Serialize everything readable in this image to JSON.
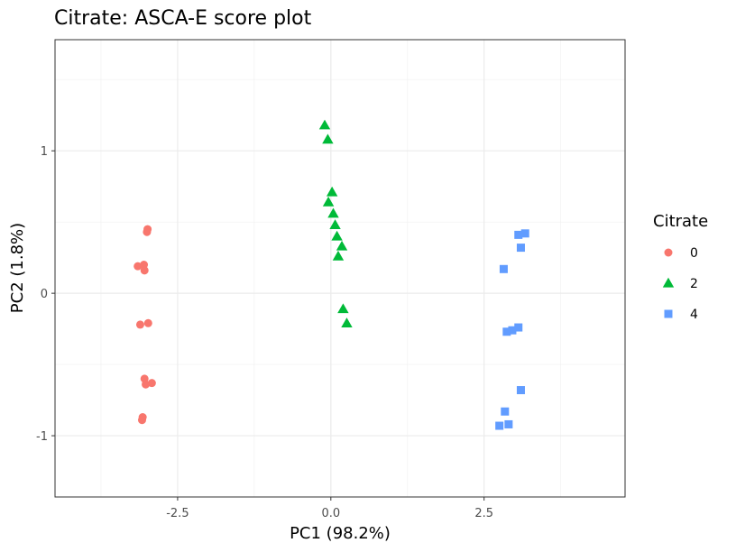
{
  "chart_data": {
    "type": "scatter",
    "title": "Citrate: ASCA-E score plot",
    "xlabel": "PC1 (98.2%)",
    "ylabel": "PC2 (1.8%)",
    "xlim": [
      -4.5,
      4.8
    ],
    "ylim": [
      -1.43,
      1.78
    ],
    "x_ticks": [
      -2.5,
      0.0,
      2.5
    ],
    "x_tick_labels": [
      "-2.5",
      "0.0",
      "2.5"
    ],
    "y_ticks": [
      -1,
      0,
      1
    ],
    "y_tick_labels": [
      "-1",
      "0",
      "1"
    ],
    "grid": true,
    "legend": {
      "title": "Citrate",
      "position": "right"
    },
    "series": [
      {
        "name": "0",
        "color": "#F8766D",
        "shape": "circle",
        "points": [
          [
            -2.99,
            0.45
          ],
          [
            -3.0,
            0.43
          ],
          [
            -3.05,
            0.2
          ],
          [
            -3.15,
            0.19
          ],
          [
            -3.04,
            0.16
          ],
          [
            -3.11,
            -0.22
          ],
          [
            -2.98,
            -0.21
          ],
          [
            -3.04,
            -0.6
          ],
          [
            -2.92,
            -0.63
          ],
          [
            -3.02,
            -0.64
          ],
          [
            -3.07,
            -0.87
          ],
          [
            -3.08,
            -0.89
          ]
        ]
      },
      {
        "name": "2",
        "color": "#00BA38",
        "shape": "triangle",
        "points": [
          [
            -0.1,
            1.18
          ],
          [
            -0.05,
            1.08
          ],
          [
            0.02,
            0.71
          ],
          [
            -0.04,
            0.64
          ],
          [
            0.04,
            0.56
          ],
          [
            0.07,
            0.48
          ],
          [
            0.1,
            0.4
          ],
          [
            0.18,
            0.33
          ],
          [
            0.12,
            0.26
          ],
          [
            0.2,
            -0.11
          ],
          [
            0.26,
            -0.21
          ]
        ]
      },
      {
        "name": "4",
        "color": "#619CFF",
        "shape": "square",
        "points": [
          [
            3.06,
            0.41
          ],
          [
            3.17,
            0.42
          ],
          [
            3.1,
            0.32
          ],
          [
            2.82,
            0.17
          ],
          [
            2.87,
            -0.27
          ],
          [
            2.96,
            -0.26
          ],
          [
            3.06,
            -0.24
          ],
          [
            3.1,
            -0.68
          ],
          [
            2.84,
            -0.83
          ],
          [
            2.9,
            -0.92
          ],
          [
            2.75,
            -0.93
          ]
        ]
      }
    ]
  }
}
